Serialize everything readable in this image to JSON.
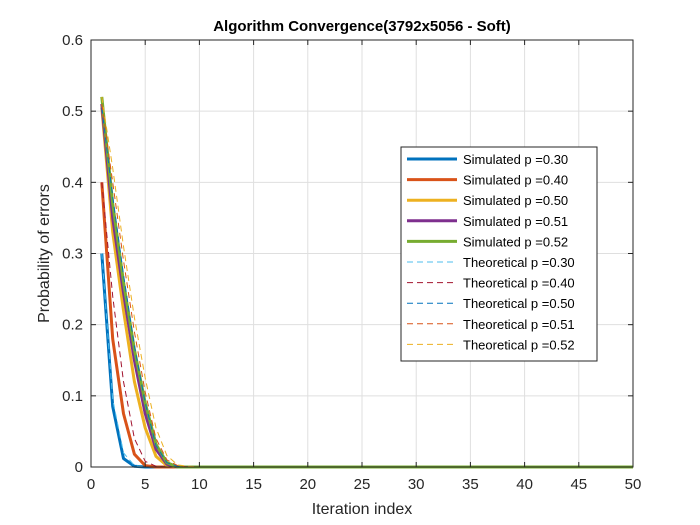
{
  "chart_data": {
    "type": "line",
    "title": "Algorithm Convergence(3792x5056 - Soft)",
    "xlabel": "Iteration index",
    "ylabel": "Probability of errors",
    "xlim": [
      0,
      50
    ],
    "ylim": [
      0,
      0.6
    ],
    "xticks": [
      0,
      5,
      10,
      15,
      20,
      25,
      30,
      35,
      40,
      45,
      50
    ],
    "yticks": [
      0,
      0.1,
      0.2,
      0.3,
      0.4,
      0.5,
      0.6
    ],
    "xtick_labels": [
      "0",
      "5",
      "10",
      "15",
      "20",
      "25",
      "30",
      "35",
      "40",
      "45",
      "50"
    ],
    "ytick_labels": [
      "0",
      "0.1",
      "0.2",
      "0.3",
      "0.4",
      "0.5",
      "0.6"
    ],
    "grid": true,
    "legend_position": "right",
    "series": [
      {
        "name": "Simulated p =0.30",
        "color": "#0072BD",
        "style": "solid",
        "x": [
          1,
          2,
          3,
          4,
          5,
          50
        ],
        "y": [
          0.3,
          0.085,
          0.012,
          0.001,
          0,
          0
        ]
      },
      {
        "name": "Simulated p =0.40",
        "color": "#D95319",
        "style": "solid",
        "x": [
          1,
          2,
          3,
          4,
          5,
          6,
          50
        ],
        "y": [
          0.4,
          0.18,
          0.075,
          0.018,
          0.002,
          0,
          0
        ]
      },
      {
        "name": "Simulated p =0.50",
        "color": "#EDB120",
        "style": "solid",
        "x": [
          1,
          2,
          3,
          4,
          5,
          6,
          7,
          8,
          50
        ],
        "y": [
          0.505,
          0.33,
          0.22,
          0.12,
          0.055,
          0.015,
          0.002,
          0,
          0
        ]
      },
      {
        "name": "Simulated p =0.51",
        "color": "#7E2F8E",
        "style": "solid",
        "x": [
          1,
          2,
          3,
          4,
          5,
          6,
          7,
          8,
          50
        ],
        "y": [
          0.51,
          0.35,
          0.245,
          0.15,
          0.075,
          0.025,
          0.004,
          0,
          0
        ]
      },
      {
        "name": "Simulated p =0.52",
        "color": "#77AC30",
        "style": "solid",
        "x": [
          1,
          2,
          3,
          4,
          5,
          6,
          7,
          8,
          50
        ],
        "y": [
          0.52,
          0.37,
          0.26,
          0.165,
          0.09,
          0.032,
          0.006,
          0,
          0
        ]
      },
      {
        "name": "Theoretical p =0.30",
        "color": "#4DBEEE",
        "style": "dashed",
        "x": [
          1,
          2,
          3,
          4,
          5,
          50
        ],
        "y": [
          0.3,
          0.095,
          0.02,
          0.002,
          0,
          0
        ]
      },
      {
        "name": "Theoretical p =0.40",
        "color": "#A2142F",
        "style": "dashed",
        "x": [
          1,
          2,
          3,
          4,
          5,
          6,
          7,
          50
        ],
        "y": [
          0.4,
          0.24,
          0.12,
          0.04,
          0.008,
          0.001,
          0,
          0
        ]
      },
      {
        "name": "Theoretical p =0.50",
        "color": "#0072BD",
        "style": "dashed",
        "x": [
          1,
          2,
          3,
          4,
          5,
          6,
          7,
          8,
          9,
          50
        ],
        "y": [
          0.505,
          0.38,
          0.27,
          0.17,
          0.09,
          0.03,
          0.006,
          0.001,
          0,
          0
        ]
      },
      {
        "name": "Theoretical p =0.51",
        "color": "#D95319",
        "style": "dashed",
        "x": [
          1,
          2,
          3,
          4,
          5,
          6,
          7,
          8,
          9,
          50
        ],
        "y": [
          0.51,
          0.4,
          0.29,
          0.19,
          0.105,
          0.04,
          0.01,
          0.002,
          0,
          0
        ]
      },
      {
        "name": "Theoretical p =0.52",
        "color": "#EDB120",
        "style": "dashed",
        "x": [
          1,
          2,
          3,
          4,
          5,
          6,
          7,
          8,
          9,
          10,
          50
        ],
        "y": [
          0.52,
          0.42,
          0.31,
          0.21,
          0.125,
          0.055,
          0.016,
          0.003,
          0.001,
          0,
          0
        ]
      }
    ]
  }
}
